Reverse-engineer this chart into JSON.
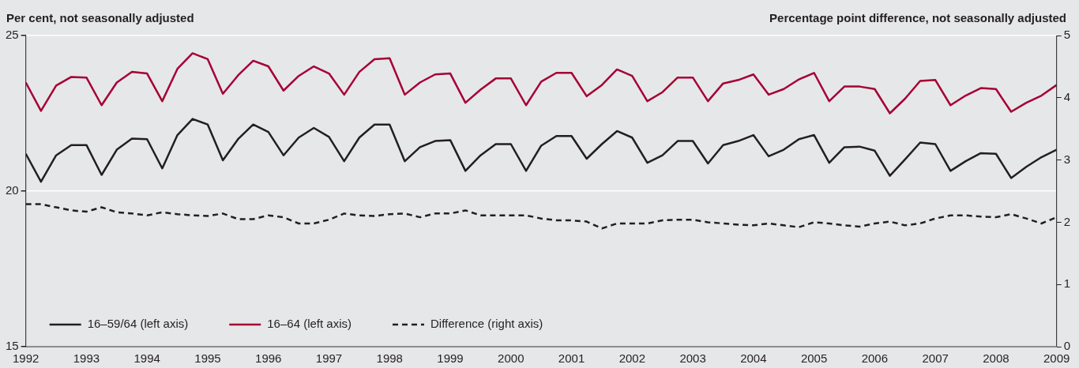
{
  "chart_data": {
    "type": "line",
    "ylabel": "Per cent, not seasonally adjusted",
    "y2label": "Percentage point difference, not seasonally adjusted",
    "x": [
      1992,
      1992.25,
      1992.5,
      1992.75,
      1993,
      1993.25,
      1993.5,
      1993.75,
      1994,
      1994.25,
      1994.5,
      1994.75,
      1995,
      1995.25,
      1995.5,
      1995.75,
      1996,
      1996.25,
      1996.5,
      1996.75,
      1997,
      1997.25,
      1997.5,
      1997.75,
      1998,
      1998.25,
      1998.5,
      1998.75,
      1999,
      1999.25,
      1999.5,
      1999.75,
      2000,
      2000.25,
      2000.5,
      2000.75,
      2001,
      2001.25,
      2001.5,
      2001.75,
      2002,
      2002.25,
      2002.5,
      2002.75,
      2003,
      2003.25,
      2003.5,
      2003.75,
      2004,
      2004.25,
      2004.5,
      2004.75,
      2005,
      2005.25,
      2005.5,
      2005.75,
      2006,
      2006.25,
      2006.5,
      2006.75,
      2007,
      2007.25,
      2007.5,
      2007.75,
      2008,
      2008.25,
      2008.5,
      2008.75,
      2009
    ],
    "series": [
      {
        "name": "16–59/64 (left axis)",
        "color": "#231f20",
        "values": [
          21.2,
          20.3,
          21.15,
          21.48,
          21.48,
          20.52,
          21.33,
          21.69,
          21.67,
          20.73,
          21.8,
          22.32,
          22.14,
          20.99,
          21.67,
          22.14,
          21.9,
          21.15,
          21.72,
          22.03,
          21.74,
          20.96,
          21.72,
          22.14,
          22.14,
          20.96,
          21.41,
          21.61,
          21.64,
          20.65,
          21.15,
          21.51,
          21.51,
          20.65,
          21.46,
          21.77,
          21.77,
          21.04,
          21.51,
          21.93,
          21.72,
          20.91,
          21.15,
          21.61,
          21.61,
          20.89,
          21.48,
          21.61,
          21.8,
          21.12,
          21.33,
          21.67,
          21.8,
          20.91,
          21.41,
          21.43,
          21.3,
          20.49,
          21.02,
          21.56,
          21.51,
          20.65,
          20.96,
          21.22,
          21.2,
          20.42,
          20.78,
          21.09,
          21.33
        ]
      },
      {
        "name": "16–64 (left axis)",
        "color": "#a50034",
        "values": [
          23.49,
          22.58,
          23.39,
          23.67,
          23.65,
          22.76,
          23.49,
          23.83,
          23.78,
          22.89,
          23.93,
          24.43,
          24.24,
          23.13,
          23.72,
          24.19,
          24.01,
          23.23,
          23.7,
          24.01,
          23.78,
          23.1,
          23.83,
          24.24,
          24.27,
          23.1,
          23.49,
          23.75,
          23.78,
          22.84,
          23.26,
          23.62,
          23.62,
          22.76,
          23.52,
          23.8,
          23.8,
          23.05,
          23.41,
          23.91,
          23.7,
          22.89,
          23.18,
          23.65,
          23.65,
          22.89,
          23.46,
          23.57,
          23.75,
          23.1,
          23.28,
          23.59,
          23.8,
          22.89,
          23.36,
          23.36,
          23.28,
          22.5,
          22.97,
          23.54,
          23.57,
          22.76,
          23.07,
          23.31,
          23.28,
          22.55,
          22.84,
          23.07,
          23.41
        ]
      },
      {
        "name": "Difference (right axis)",
        "color": "#231f20",
        "axis": "y2",
        "line_style": "dashed",
        "values": [
          2.29,
          2.29,
          2.24,
          2.19,
          2.17,
          2.24,
          2.16,
          2.14,
          2.11,
          2.16,
          2.13,
          2.11,
          2.1,
          2.14,
          2.05,
          2.05,
          2.11,
          2.08,
          1.98,
          1.98,
          2.04,
          2.14,
          2.11,
          2.1,
          2.13,
          2.14,
          2.08,
          2.14,
          2.14,
          2.19,
          2.11,
          2.11,
          2.11,
          2.11,
          2.06,
          2.03,
          2.03,
          2.01,
          1.9,
          1.98,
          1.98,
          1.98,
          2.03,
          2.04,
          2.04,
          2,
          1.98,
          1.96,
          1.95,
          1.98,
          1.95,
          1.92,
          2,
          1.98,
          1.95,
          1.93,
          1.98,
          2.01,
          1.95,
          1.98,
          2.06,
          2.11,
          2.11,
          2.09,
          2.08,
          2.13,
          2.06,
          1.98,
          2.08
        ]
      }
    ],
    "xlim": [
      1992,
      2009
    ],
    "xticks": [
      1992,
      1993,
      1994,
      1995,
      1996,
      1997,
      1998,
      1999,
      2000,
      2001,
      2002,
      2003,
      2004,
      2005,
      2006,
      2007,
      2008,
      2009
    ],
    "ylim": [
      15,
      25
    ],
    "yticks": [
      15,
      20,
      25
    ],
    "y2lim": [
      0,
      5
    ],
    "y2ticks": [
      0,
      1,
      2,
      3,
      4,
      5
    ],
    "grid": "y",
    "legend": "bottom left",
    "marker": "none"
  }
}
